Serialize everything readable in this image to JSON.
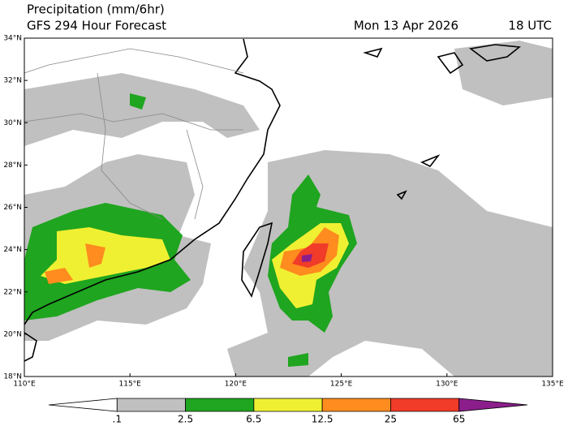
{
  "header": {
    "title": "Precipitation (mm/6hr)",
    "subtitle": "GFS 294 Hour Forecast",
    "valid_date": "Mon 13 Apr 2026",
    "valid_time": "18 UTC"
  },
  "map": {
    "lat_labels": [
      "34°N",
      "32°N",
      "30°N",
      "28°N",
      "26°N",
      "24°N",
      "22°N",
      "20°N",
      "18°N"
    ],
    "lon_labels": [
      "110°E",
      "115°E",
      "120°E",
      "125°E",
      "130°E",
      "135°E"
    ]
  },
  "colorbar": {
    "labels": [
      ".1",
      "2.5",
      "6.5",
      "12.5",
      "25",
      "65"
    ],
    "colors": [
      "#ffffff",
      "#c0c0c0",
      "#1fa51f",
      "#f0f032",
      "#ff8c1e",
      "#f03c28",
      "#8c1e8c"
    ]
  }
}
